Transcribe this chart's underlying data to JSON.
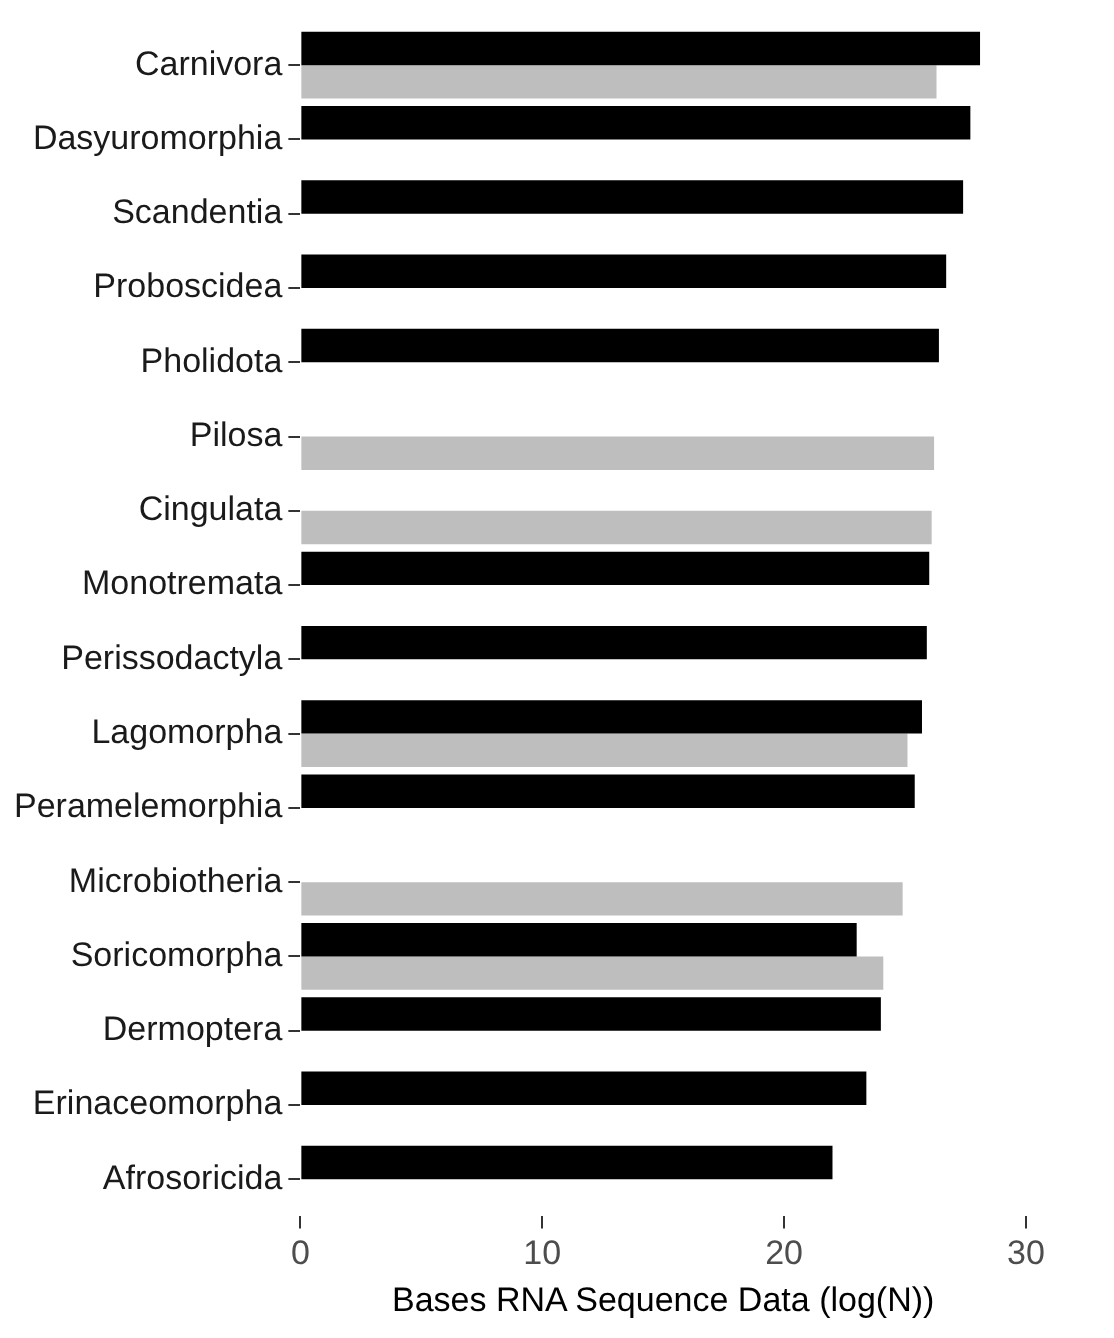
{
  "chart_data": {
    "type": "bar",
    "orientation": "horizontal",
    "xlabel": "Bases RNA Sequence Data (log(N))",
    "categories": [
      "Carnivora",
      "Dasyuromorphia",
      "Scandentia",
      "Proboscidea",
      "Pholidota",
      "Pilosa",
      "Cingulata",
      "Monotremata",
      "Perissodactyla",
      "Lagomorpha",
      "Peramelemorphia",
      "Microbiotheria",
      "Soricomorpha",
      "Dermoptera",
      "Erinaceomorpha",
      "Afrosoricida"
    ],
    "series": [
      {
        "color": "#000000",
        "values": [
          28.1,
          27.7,
          27.4,
          26.7,
          26.4,
          null,
          null,
          26.0,
          25.9,
          25.7,
          25.4,
          null,
          23.0,
          24.0,
          23.4,
          22.0
        ]
      },
      {
        "color": "#bebebe",
        "values": [
          26.3,
          null,
          null,
          null,
          null,
          26.2,
          26.1,
          null,
          null,
          25.1,
          null,
          24.9,
          24.1,
          null,
          null,
          null
        ]
      }
    ],
    "xlim": [
      0,
      30
    ],
    "xticks": [
      0,
      10,
      20,
      30
    ],
    "grid": false,
    "legend": false
  }
}
